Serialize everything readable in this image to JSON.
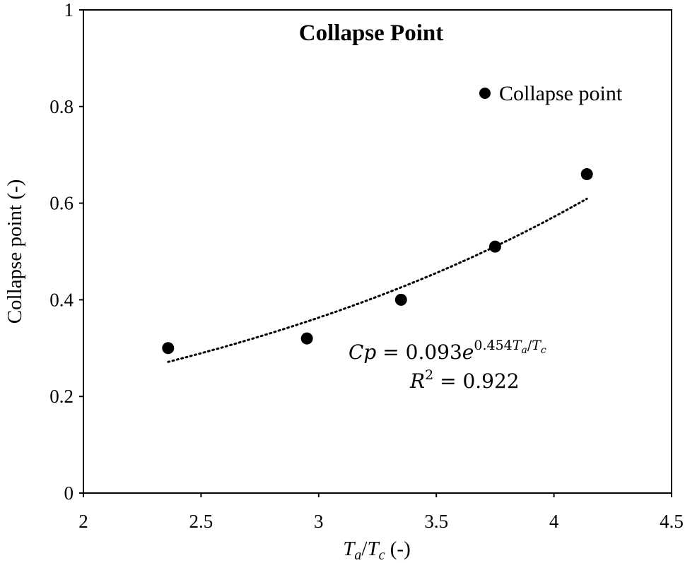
{
  "chart_data": {
    "type": "scatter",
    "title": "Collapse Point",
    "xlabel": {
      "T": "T",
      "a": "a",
      "slash": "/",
      "c": "c",
      "unit": " (-)"
    },
    "ylabel": "Collapse point (-)",
    "xlim": [
      2,
      4.5
    ],
    "ylim": [
      0,
      1
    ],
    "x_ticks": [
      "2",
      "2.5",
      "3",
      "3.5",
      "4",
      "4.5"
    ],
    "y_ticks": [
      "0",
      "0.2",
      "0.4",
      "0.6",
      "0.8",
      "1"
    ],
    "grid": false,
    "legend_position": "top-right",
    "series": [
      {
        "name": "Collapse point",
        "color": "#000000",
        "marker": "circle",
        "x": [
          2.36,
          2.95,
          3.35,
          3.75,
          4.14
        ],
        "y": [
          0.3,
          0.32,
          0.4,
          0.51,
          0.66
        ]
      }
    ],
    "trendline": {
      "style": "dotted",
      "color": "#000000",
      "type": "exponential",
      "coefficient": 0.093,
      "exponent": 0.454,
      "x_range": [
        2.36,
        4.14
      ]
    },
    "annotation": {
      "eq_lhs": "Cp",
      "eq_equals": " = ",
      "eq_coef": "0.093",
      "eq_e": "e",
      "eq_exp_num": "0.454",
      "eq_exp_T1": "T",
      "eq_exp_a": "a",
      "eq_exp_slash": "/",
      "eq_exp_T2": "T",
      "eq_exp_c": "c",
      "r2_R": "R",
      "r2_sup": "2",
      "r2_rest": " = 0.922"
    }
  }
}
